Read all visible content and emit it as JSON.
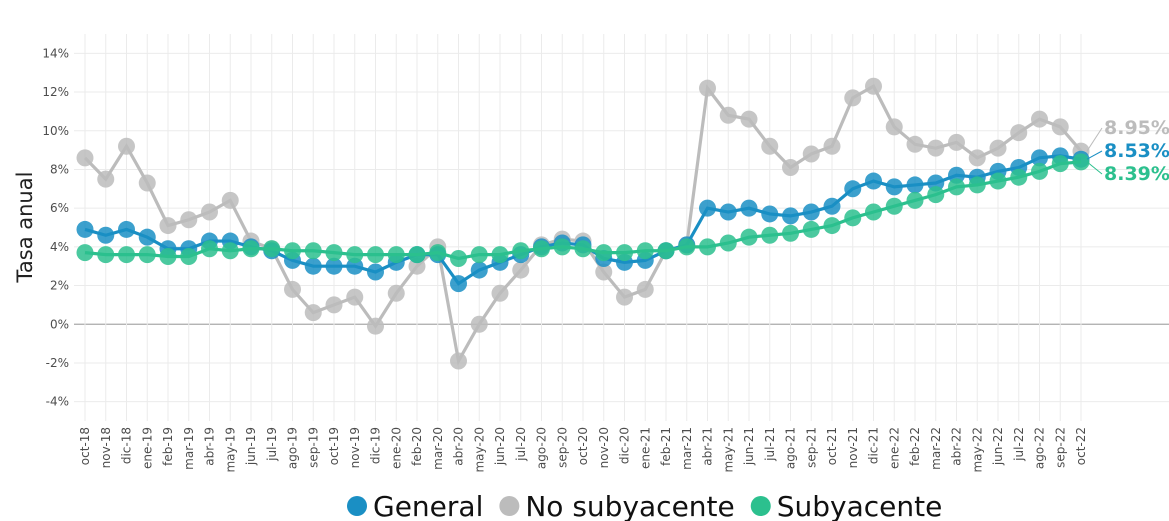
{
  "chart_data": {
    "type": "line",
    "ylabel": "Tasa anual",
    "categories": [
      "oct-18",
      "nov-18",
      "dic-18",
      "ene-19",
      "feb-19",
      "mar-19",
      "abr-19",
      "may-19",
      "jun-19",
      "jul-19",
      "ago-19",
      "sep-19",
      "oct-19",
      "nov-19",
      "dic-19",
      "ene-20",
      "feb-20",
      "mar-20",
      "abr-20",
      "may-20",
      "jun-20",
      "jul-20",
      "ago-20",
      "sep-20",
      "oct-20",
      "nov-20",
      "dic-20",
      "ene-21",
      "feb-21",
      "mar-21",
      "abr-21",
      "may-21",
      "jun-21",
      "jul-21",
      "ago-21",
      "sep-21",
      "oct-21",
      "nov-21",
      "dic-21",
      "ene-22",
      "feb-22",
      "mar-22",
      "abr-22",
      "may-22",
      "jun-22",
      "jul-22",
      "ago-22",
      "sep-22",
      "oct-22"
    ],
    "series": [
      {
        "name": "General",
        "color": "#1a8fc4",
        "values": [
          4.9,
          4.6,
          4.9,
          4.5,
          3.9,
          3.9,
          4.3,
          4.3,
          4.0,
          3.8,
          3.3,
          3.0,
          3.0,
          3.0,
          2.7,
          3.2,
          3.6,
          3.6,
          2.1,
          2.8,
          3.2,
          3.6,
          4.0,
          4.2,
          4.1,
          3.4,
          3.2,
          3.3,
          3.8,
          4.1,
          6.0,
          5.8,
          6.0,
          5.7,
          5.6,
          5.8,
          6.1,
          7.0,
          7.4,
          7.1,
          7.2,
          7.3,
          7.7,
          7.6,
          7.9,
          8.1,
          8.6,
          8.7,
          8.53
        ],
        "value_labels": [
          null,
          null,
          null,
          null,
          null,
          null,
          null,
          null,
          null,
          null,
          null,
          null,
          null,
          null,
          null,
          null,
          null,
          null,
          null,
          null,
          null,
          null,
          null,
          null,
          null,
          null,
          null,
          null,
          null,
          null,
          null,
          null,
          null,
          null,
          null,
          null,
          null,
          null,
          null,
          null,
          null,
          null,
          null,
          null,
          null,
          null,
          null,
          null,
          "8.53%"
        ]
      },
      {
        "name": "No subyacente",
        "color": "#bcbcbc",
        "values": [
          8.6,
          7.5,
          9.2,
          7.3,
          5.1,
          5.4,
          5.8,
          6.4,
          4.3,
          3.9,
          1.8,
          0.6,
          1.0,
          1.4,
          -0.1,
          1.6,
          3.0,
          4.0,
          -1.9,
          0.0,
          1.6,
          2.8,
          4.1,
          4.4,
          4.3,
          2.7,
          1.4,
          1.8,
          3.8,
          4.1,
          12.2,
          10.8,
          10.6,
          9.2,
          8.1,
          8.8,
          9.2,
          11.7,
          12.3,
          10.2,
          9.3,
          9.1,
          9.4,
          8.6,
          9.1,
          9.9,
          10.6,
          10.2,
          8.95
        ],
        "value_labels": [
          null,
          null,
          null,
          null,
          null,
          null,
          null,
          null,
          null,
          null,
          null,
          null,
          null,
          null,
          null,
          null,
          null,
          null,
          null,
          null,
          null,
          null,
          null,
          null,
          null,
          null,
          null,
          null,
          null,
          null,
          null,
          null,
          null,
          null,
          null,
          null,
          null,
          null,
          null,
          null,
          null,
          null,
          null,
          null,
          null,
          null,
          null,
          null,
          "8.95%"
        ]
      },
      {
        "name": "Subyacente",
        "color": "#2cc08e",
        "values": [
          3.7,
          3.6,
          3.6,
          3.6,
          3.5,
          3.5,
          3.9,
          3.8,
          3.9,
          3.9,
          3.8,
          3.8,
          3.7,
          3.6,
          3.6,
          3.6,
          3.6,
          3.7,
          3.4,
          3.6,
          3.6,
          3.8,
          3.9,
          4.0,
          3.9,
          3.7,
          3.7,
          3.8,
          3.8,
          4.0,
          4.0,
          4.2,
          4.5,
          4.6,
          4.7,
          4.9,
          5.1,
          5.5,
          5.8,
          6.1,
          6.4,
          6.7,
          7.1,
          7.2,
          7.4,
          7.6,
          7.9,
          8.3,
          8.39
        ],
        "value_labels": [
          null,
          null,
          null,
          null,
          null,
          null,
          null,
          null,
          null,
          null,
          null,
          null,
          null,
          null,
          null,
          null,
          null,
          null,
          null,
          null,
          null,
          null,
          null,
          null,
          null,
          null,
          null,
          null,
          null,
          null,
          null,
          null,
          null,
          null,
          null,
          null,
          null,
          null,
          null,
          null,
          null,
          null,
          null,
          null,
          null,
          null,
          null,
          null,
          "8.39%"
        ]
      }
    ],
    "ylim": [
      -5,
      15
    ],
    "yticks": [
      {
        "value": -4,
        "label": "-4%"
      },
      {
        "value": -2,
        "label": "-2%"
      },
      {
        "value": 0,
        "label": "0%"
      },
      {
        "value": 2,
        "label": "2%"
      },
      {
        "value": 4,
        "label": "4%"
      },
      {
        "value": 6,
        "label": "6%"
      },
      {
        "value": 8,
        "label": "8%"
      },
      {
        "value": 10,
        "label": "10%"
      },
      {
        "value": 12,
        "label": "12%"
      },
      {
        "value": 14,
        "label": "14%"
      }
    ],
    "grid": true,
    "legend": "bottom"
  }
}
